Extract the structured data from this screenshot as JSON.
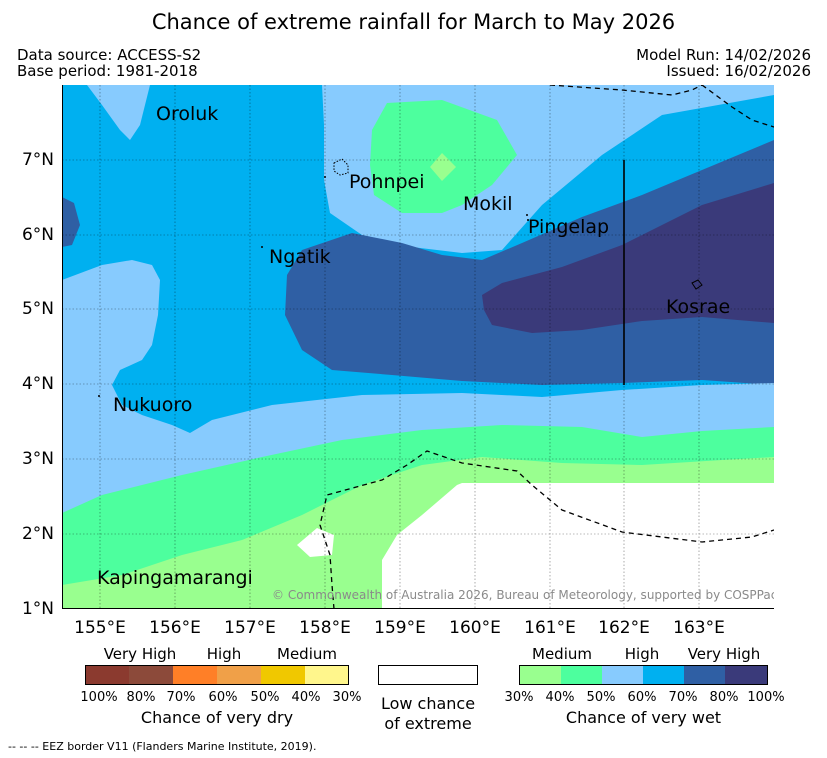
{
  "title": "Chance of extreme rainfall for March to May 2026",
  "meta": {
    "data_source": "Data source: ACCESS-S2",
    "base_period": "Base period: 1981-2018",
    "model_run": "Model Run: 14/02/2026",
    "issued": "Issued: 16/02/2026"
  },
  "map": {
    "lat_labels": [
      "7°N",
      "6°N",
      "5°N",
      "4°N",
      "3°N",
      "2°N",
      "1°N"
    ],
    "lon_labels": [
      "155°E",
      "156°E",
      "157°E",
      "158°E",
      "159°E",
      "160°E",
      "161°E",
      "162°E",
      "163°E"
    ],
    "places": {
      "oroluk": "Oroluk",
      "pohnpei": "Pohnpei",
      "mokil": "Mokil",
      "pingelap": "Pingelap",
      "ngatik": "Ngatik",
      "kosrae": "Kosrae",
      "nukuoro": "Nukuoro",
      "kapingamarangi": "Kapingamarangi"
    },
    "copyright": "© Commonwealth of Australia 2026, Bureau of Meteorology, supported by COSPPac"
  },
  "colors": {
    "dry": [
      "#8b3a2f",
      "#8c4a3a",
      "#ff7f27",
      "#f0a048",
      "#f0c800",
      "#fff68c"
    ],
    "wet": [
      "#99ff8f",
      "#4dff9e",
      "#87cbfe",
      "#00b0f0",
      "#2f5fa4",
      "#3a3a7a"
    ],
    "low": "#ffffff"
  },
  "legend": {
    "dry": {
      "headers": [
        "Very High",
        "High",
        "Medium"
      ],
      "ticks": [
        "100%",
        "80%",
        "70%",
        "60%",
        "50%",
        "40%",
        "30%"
      ],
      "title": "Chance of very dry"
    },
    "low": {
      "line1": "Low chance",
      "line2": "of extreme"
    },
    "wet": {
      "headers": [
        "Medium",
        "High",
        "Very High"
      ],
      "ticks": [
        "30%",
        "40%",
        "50%",
        "60%",
        "70%",
        "80%",
        "100%"
      ],
      "title": "Chance of very wet"
    }
  },
  "footnote": "-- -- -- EEZ border V11 (Flanders Marine Institute, 2019)."
}
